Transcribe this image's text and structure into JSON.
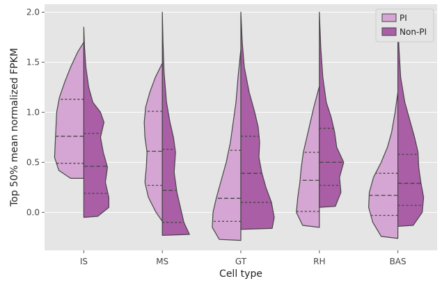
{
  "chart_data": {
    "type": "violin",
    "split": true,
    "xlabel": "Cell type",
    "ylabel": "Top 50% mean normalized FPKM",
    "categories": [
      "IS",
      "MS",
      "GT",
      "RH",
      "BAS"
    ],
    "ylim": [
      -0.38,
      2.08
    ],
    "yticks": [
      "0.0",
      "0.5",
      "1.0",
      "1.5",
      "2.0"
    ],
    "grid": true,
    "background": "#e5e5e5",
    "legend": {
      "position": "top-right"
    },
    "series": [
      {
        "name": "PI",
        "color": "#d5a6d3",
        "side": "left",
        "violins": [
          {
            "category": "IS",
            "min": 0.34,
            "max": 1.7,
            "quartiles": [
              0.49,
              0.76,
              1.13
            ],
            "profile": [
              [
                0.34,
                0.0
              ],
              [
                0.34,
                0.38
              ],
              [
                0.42,
                0.72
              ],
              [
                0.55,
                0.84
              ],
              [
                0.7,
                0.82
              ],
              [
                0.85,
                0.8
              ],
              [
                1.0,
                0.78
              ],
              [
                1.15,
                0.7
              ],
              [
                1.3,
                0.55
              ],
              [
                1.45,
                0.38
              ],
              [
                1.6,
                0.18
              ],
              [
                1.7,
                0.0
              ]
            ]
          },
          {
            "category": "MS",
            "min": -0.09,
            "max": 1.49,
            "quartiles": [
              0.27,
              0.61,
              1.01
            ],
            "profile": [
              [
                -0.09,
                0.0
              ],
              [
                0.0,
                0.18
              ],
              [
                0.15,
                0.4
              ],
              [
                0.3,
                0.5
              ],
              [
                0.45,
                0.46
              ],
              [
                0.6,
                0.44
              ],
              [
                0.75,
                0.5
              ],
              [
                0.9,
                0.52
              ],
              [
                1.05,
                0.48
              ],
              [
                1.2,
                0.36
              ],
              [
                1.35,
                0.2
              ],
              [
                1.49,
                0.0
              ]
            ]
          },
          {
            "category": "GT",
            "min": -0.28,
            "max": 1.63,
            "quartiles": [
              -0.09,
              0.14,
              0.62
            ],
            "profile": [
              [
                -0.28,
                0.0
              ],
              [
                -0.27,
                0.62
              ],
              [
                -0.15,
                0.82
              ],
              [
                0.0,
                0.8
              ],
              [
                0.15,
                0.7
              ],
              [
                0.3,
                0.58
              ],
              [
                0.5,
                0.42
              ],
              [
                0.7,
                0.3
              ],
              [
                0.9,
                0.22
              ],
              [
                1.1,
                0.14
              ],
              [
                1.35,
                0.08
              ],
              [
                1.63,
                0.0
              ]
            ]
          },
          {
            "category": "RH",
            "min": -0.15,
            "max": 1.26,
            "quartiles": [
              0.01,
              0.32,
              0.6
            ],
            "profile": [
              [
                -0.15,
                0.0
              ],
              [
                -0.13,
                0.48
              ],
              [
                0.0,
                0.66
              ],
              [
                0.15,
                0.62
              ],
              [
                0.3,
                0.56
              ],
              [
                0.45,
                0.52
              ],
              [
                0.6,
                0.46
              ],
              [
                0.75,
                0.36
              ],
              [
                0.9,
                0.26
              ],
              [
                1.05,
                0.16
              ],
              [
                1.26,
                0.0
              ]
            ]
          },
          {
            "category": "BAS",
            "min": -0.26,
            "max": 1.2,
            "quartiles": [
              -0.03,
              0.17,
              0.39
            ],
            "profile": [
              [
                -0.26,
                0.0
              ],
              [
                -0.24,
                0.48
              ],
              [
                -0.1,
                0.72
              ],
              [
                0.05,
                0.84
              ],
              [
                0.2,
                0.82
              ],
              [
                0.35,
                0.7
              ],
              [
                0.5,
                0.48
              ],
              [
                0.65,
                0.3
              ],
              [
                0.8,
                0.18
              ],
              [
                1.0,
                0.08
              ],
              [
                1.2,
                0.0
              ]
            ]
          }
        ]
      },
      {
        "name": "Non-PI",
        "color": "#a95ea6",
        "side": "right",
        "violins": [
          {
            "category": "IS",
            "min": -0.05,
            "max": 1.85,
            "quartiles": [
              0.19,
              0.46,
              0.79
            ],
            "profile": [
              [
                -0.05,
                0.0
              ],
              [
                -0.04,
                0.4
              ],
              [
                0.05,
                0.72
              ],
              [
                0.15,
                0.72
              ],
              [
                0.3,
                0.62
              ],
              [
                0.45,
                0.68
              ],
              [
                0.6,
                0.56
              ],
              [
                0.75,
                0.48
              ],
              [
                0.9,
                0.58
              ],
              [
                1.0,
                0.48
              ],
              [
                1.1,
                0.26
              ],
              [
                1.25,
                0.14
              ],
              [
                1.45,
                0.06
              ],
              [
                1.65,
                0.02
              ],
              [
                1.85,
                0.0
              ]
            ]
          },
          {
            "category": "MS",
            "min": -0.23,
            "max": 2.0,
            "quartiles": [
              -0.1,
              0.22,
              0.63
            ],
            "profile": [
              [
                -0.23,
                0.0
              ],
              [
                -0.22,
                0.78
              ],
              [
                -0.1,
                0.62
              ],
              [
                0.05,
                0.52
              ],
              [
                0.2,
                0.42
              ],
              [
                0.4,
                0.34
              ],
              [
                0.6,
                0.38
              ],
              [
                0.75,
                0.32
              ],
              [
                0.9,
                0.22
              ],
              [
                1.1,
                0.12
              ],
              [
                1.4,
                0.05
              ],
              [
                1.7,
                0.02
              ],
              [
                2.0,
                0.0
              ]
            ]
          },
          {
            "category": "GT",
            "min": -0.17,
            "max": 2.0,
            "quartiles": [
              0.1,
              0.39,
              0.76
            ],
            "profile": [
              [
                -0.17,
                0.0
              ],
              [
                -0.16,
                0.9
              ],
              [
                -0.05,
                0.96
              ],
              [
                0.1,
                0.88
              ],
              [
                0.25,
                0.72
              ],
              [
                0.4,
                0.6
              ],
              [
                0.55,
                0.52
              ],
              [
                0.7,
                0.54
              ],
              [
                0.85,
                0.5
              ],
              [
                1.0,
                0.4
              ],
              [
                1.2,
                0.24
              ],
              [
                1.45,
                0.1
              ],
              [
                1.7,
                0.04
              ],
              [
                2.0,
                0.0
              ]
            ]
          },
          {
            "category": "RH",
            "min": 0.05,
            "max": 2.0,
            "quartiles": [
              0.27,
              0.5,
              0.84
            ],
            "profile": [
              [
                0.05,
                0.0
              ],
              [
                0.06,
                0.46
              ],
              [
                0.2,
                0.62
              ],
              [
                0.35,
                0.58
              ],
              [
                0.5,
                0.7
              ],
              [
                0.65,
                0.5
              ],
              [
                0.8,
                0.44
              ],
              [
                0.95,
                0.34
              ],
              [
                1.1,
                0.2
              ],
              [
                1.35,
                0.1
              ],
              [
                1.65,
                0.04
              ],
              [
                2.0,
                0.0
              ]
            ]
          },
          {
            "category": "BAS",
            "min": -0.14,
            "max": 1.95,
            "quartiles": [
              0.07,
              0.29,
              0.58
            ],
            "profile": [
              [
                -0.14,
                0.0
              ],
              [
                -0.13,
                0.44
              ],
              [
                0.0,
                0.7
              ],
              [
                0.15,
                0.74
              ],
              [
                0.3,
                0.66
              ],
              [
                0.45,
                0.6
              ],
              [
                0.6,
                0.58
              ],
              [
                0.75,
                0.48
              ],
              [
                0.9,
                0.36
              ],
              [
                1.1,
                0.2
              ],
              [
                1.35,
                0.08
              ],
              [
                1.65,
                0.03
              ],
              [
                1.95,
                0.0
              ]
            ]
          }
        ]
      }
    ]
  }
}
